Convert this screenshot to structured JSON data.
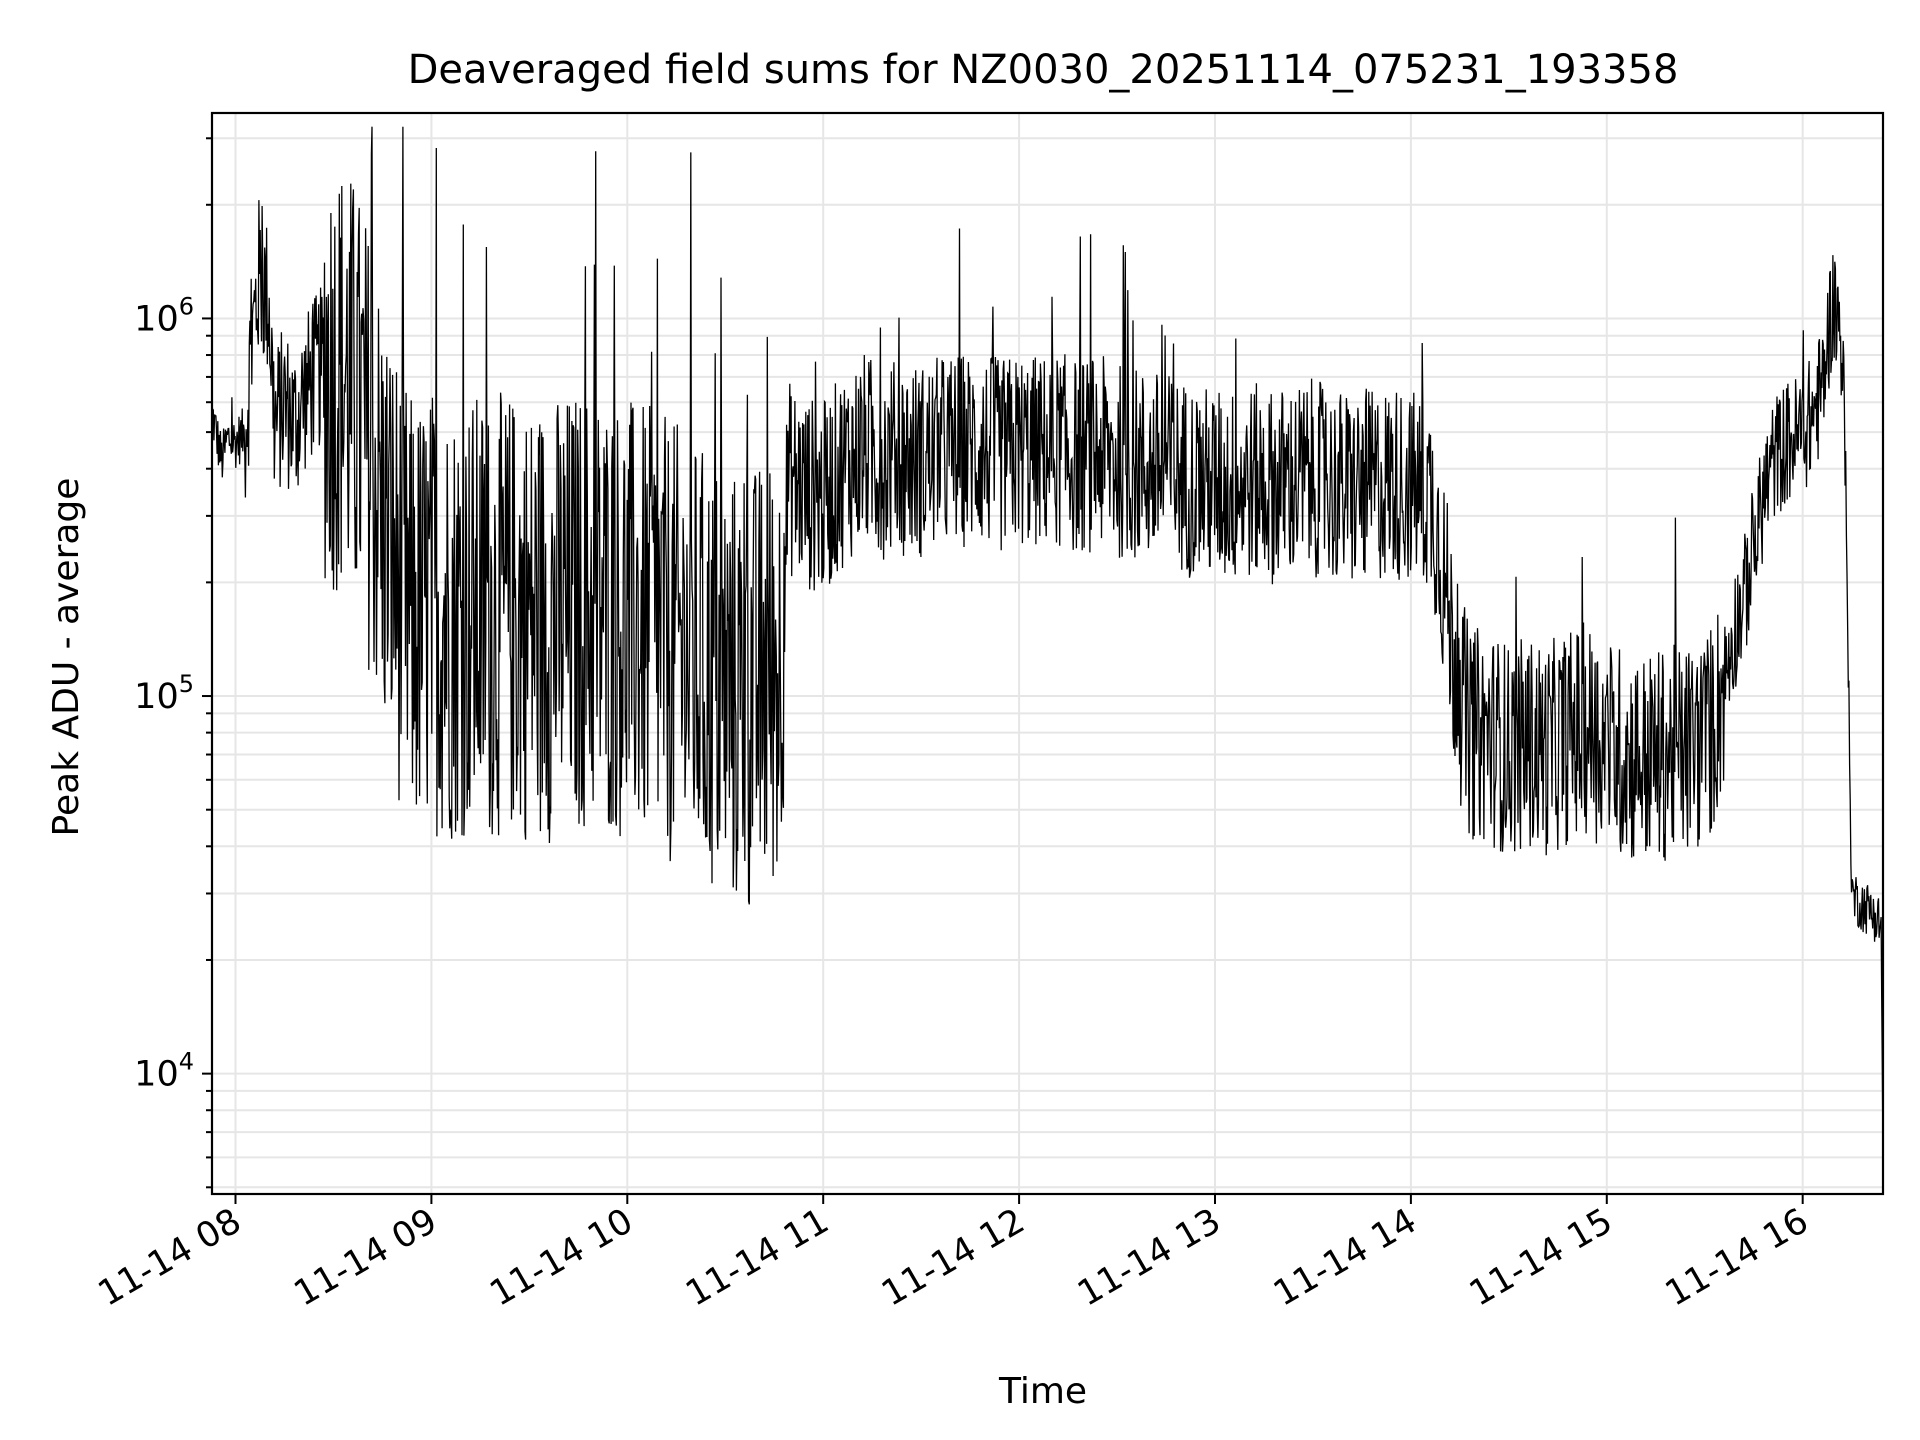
{
  "chart_data": {
    "type": "line",
    "title": "Deaveraged field sums for NZ0030_20251114_075231_193358",
    "xlabel": "Time",
    "ylabel": "Peak ADU - average",
    "yscale": "log",
    "xlim_hours": [
      7.88,
      16.41
    ],
    "ylim": [
      4800,
      3500000
    ],
    "grid": true,
    "line_color": "#000000",
    "x_ticks": [
      {
        "hour": 8,
        "label": "11-14 08"
      },
      {
        "hour": 9,
        "label": "11-14 09"
      },
      {
        "hour": 10,
        "label": "11-14 10"
      },
      {
        "hour": 11,
        "label": "11-14 11"
      },
      {
        "hour": 12,
        "label": "11-14 12"
      },
      {
        "hour": 13,
        "label": "11-14 13"
      },
      {
        "hour": 14,
        "label": "11-14 14"
      },
      {
        "hour": 15,
        "label": "11-14 15"
      },
      {
        "hour": 16,
        "label": "11-14 16"
      }
    ],
    "y_ticks": [
      {
        "value": 10000,
        "base": "10",
        "exp": "4"
      },
      {
        "value": 100000,
        "base": "10",
        "exp": "5"
      },
      {
        "value": 1000000,
        "base": "10",
        "exp": "6"
      }
    ],
    "series": [
      {
        "name": "Peak ADU - average",
        "points": [
          [
            7.88,
            560000
          ],
          [
            7.9,
            500000
          ],
          [
            7.93,
            420000
          ],
          [
            7.96,
            480000
          ],
          [
            8.0,
            470000
          ],
          [
            8.05,
            500000
          ],
          [
            8.08,
            820000
          ],
          [
            8.12,
            1300000
          ],
          [
            8.17,
            1100000
          ],
          [
            8.2,
            520000
          ],
          [
            8.25,
            600000
          ],
          [
            8.3,
            520000
          ],
          [
            8.35,
            620000
          ],
          [
            8.4,
            700000
          ],
          [
            8.45,
            760000
          ],
          [
            8.5,
            730000
          ],
          [
            8.55,
            700000
          ],
          [
            8.6,
            620000
          ],
          [
            8.65,
            520000
          ],
          [
            8.7,
            420000
          ],
          [
            8.75,
            300000
          ],
          [
            8.8,
            240000
          ],
          [
            8.85,
            190000
          ],
          [
            8.9,
            160000
          ],
          [
            8.95,
            160000
          ],
          [
            9.0,
            170000
          ],
          [
            9.1,
            160000
          ],
          [
            9.2,
            165000
          ],
          [
            9.3,
            160000
          ],
          [
            9.4,
            165000
          ],
          [
            9.5,
            160000
          ],
          [
            9.6,
            160000
          ],
          [
            9.7,
            165000
          ],
          [
            9.8,
            170000
          ],
          [
            9.9,
            165000
          ],
          [
            10.0,
            160000
          ],
          [
            10.1,
            150000
          ],
          [
            10.2,
            140000
          ],
          [
            10.3,
            130000
          ],
          [
            10.4,
            115000
          ],
          [
            10.5,
            105000
          ],
          [
            10.6,
            100000
          ],
          [
            10.7,
            110000
          ],
          [
            10.78,
            120000
          ],
          [
            10.82,
            380000
          ],
          [
            10.9,
            350000
          ],
          [
            11.0,
            330000
          ],
          [
            11.1,
            400000
          ],
          [
            11.2,
            450000
          ],
          [
            11.3,
            420000
          ],
          [
            11.4,
            430000
          ],
          [
            11.5,
            420000
          ],
          [
            11.6,
            440000
          ],
          [
            11.7,
            450000
          ],
          [
            11.8,
            450000
          ],
          [
            11.9,
            430000
          ],
          [
            12.0,
            450000
          ],
          [
            12.1,
            440000
          ],
          [
            12.2,
            450000
          ],
          [
            12.3,
            430000
          ],
          [
            12.4,
            440000
          ],
          [
            12.5,
            420000
          ],
          [
            12.6,
            410000
          ],
          [
            12.7,
            400000
          ],
          [
            12.8,
            390000
          ],
          [
            12.9,
            370000
          ],
          [
            13.0,
            360000
          ],
          [
            13.1,
            360000
          ],
          [
            13.2,
            370000
          ],
          [
            13.3,
            360000
          ],
          [
            13.4,
            370000
          ],
          [
            13.5,
            380000
          ],
          [
            13.6,
            360000
          ],
          [
            13.7,
            350000
          ],
          [
            13.8,
            360000
          ],
          [
            13.9,
            370000
          ],
          [
            14.0,
            360000
          ],
          [
            14.1,
            340000
          ],
          [
            14.15,
            250000
          ],
          [
            14.2,
            150000
          ],
          [
            14.25,
            100000
          ],
          [
            14.3,
            80000
          ],
          [
            14.4,
            78000
          ],
          [
            14.5,
            72000
          ],
          [
            14.6,
            75000
          ],
          [
            14.7,
            72000
          ],
          [
            14.8,
            78000
          ],
          [
            14.9,
            82000
          ],
          [
            15.0,
            75000
          ],
          [
            15.1,
            70000
          ],
          [
            15.2,
            68000
          ],
          [
            15.3,
            70000
          ],
          [
            15.4,
            72000
          ],
          [
            15.5,
            75000
          ],
          [
            15.55,
            85000
          ],
          [
            15.6,
            110000
          ],
          [
            15.65,
            150000
          ],
          [
            15.7,
            180000
          ],
          [
            15.75,
            240000
          ],
          [
            15.8,
            340000
          ],
          [
            15.85,
            420000
          ],
          [
            15.9,
            460000
          ],
          [
            16.0,
            500000
          ],
          [
            16.05,
            550000
          ],
          [
            16.1,
            650000
          ],
          [
            16.15,
            1100000
          ],
          [
            16.2,
            900000
          ],
          [
            16.22,
            350000
          ],
          [
            16.25,
            30000
          ],
          [
            16.3,
            28000
          ],
          [
            16.35,
            27000
          ],
          [
            16.4,
            25000
          ],
          [
            16.41,
            6000
          ]
        ]
      }
    ]
  }
}
